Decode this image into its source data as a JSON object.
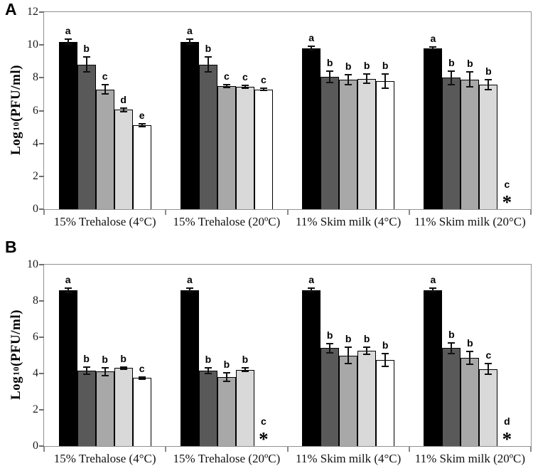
{
  "figure_title": "",
  "accent_colors": {
    "bar_border": "#000000",
    "frame": "#919191",
    "text": "#111111"
  },
  "chart_data": [
    {
      "type": "bar",
      "panel_label": "A",
      "ylabel": "Log10(PFU/ml)",
      "ylabel_parts": {
        "prefix": "Log",
        "sub": "10",
        "suffix": "(PFU/ml)"
      },
      "ylim": [
        0,
        12
      ],
      "yticks": [
        0,
        2,
        4,
        6,
        8,
        10,
        12
      ],
      "grid": false,
      "legend": "none",
      "series_colors": [
        "#000000",
        "#595959",
        "#a8a8a8",
        "#d9d9d9",
        "#ffffff"
      ],
      "categories": [
        "15% Trehalose (4°C)",
        "15% Trehalose (20ºC)",
        "11% Skim milk (4°C)",
        "11% Skim milk (20°C)"
      ],
      "groups": [
        {
          "category": "15% Trehalose (4°C)",
          "bars": [
            {
              "value": 10.2,
              "err": 0.15,
              "letter": "a"
            },
            {
              "value": 8.8,
              "err": 0.45,
              "letter": "b"
            },
            {
              "value": 7.3,
              "err": 0.3,
              "letter": "c"
            },
            {
              "value": 6.05,
              "err": 0.1,
              "letter": "d"
            },
            {
              "value": 5.1,
              "err": 0.08,
              "letter": "e"
            }
          ]
        },
        {
          "category": "15% Trehalose (20ºC)",
          "bars": [
            {
              "value": 10.2,
              "err": 0.15,
              "letter": "a"
            },
            {
              "value": 8.8,
              "err": 0.45,
              "letter": "b"
            },
            {
              "value": 7.5,
              "err": 0.08,
              "letter": "c"
            },
            {
              "value": 7.45,
              "err": 0.1,
              "letter": "c"
            },
            {
              "value": 7.3,
              "err": 0.08,
              "letter": "c"
            }
          ]
        },
        {
          "category": "11% Skim milk (4°C)",
          "bars": [
            {
              "value": 9.8,
              "err": 0.1,
              "letter": "a"
            },
            {
              "value": 8.05,
              "err": 0.35,
              "letter": "b"
            },
            {
              "value": 7.9,
              "err": 0.3,
              "letter": "b"
            },
            {
              "value": 7.95,
              "err": 0.3,
              "letter": "b"
            },
            {
              "value": 7.8,
              "err": 0.45,
              "letter": "b"
            }
          ]
        },
        {
          "category": "11% Skim milk (20°C)",
          "bars": [
            {
              "value": 9.8,
              "err": 0.07,
              "letter": "a"
            },
            {
              "value": 8.0,
              "err": 0.4,
              "letter": "b"
            },
            {
              "value": 7.9,
              "err": 0.45,
              "letter": "b"
            },
            {
              "value": 7.6,
              "err": 0.3,
              "letter": "b"
            },
            {
              "value": null,
              "err": null,
              "letter": "c",
              "asterisk": "*"
            }
          ]
        }
      ]
    },
    {
      "type": "bar",
      "panel_label": "B",
      "ylabel": "Log10(PFU/ml)",
      "ylabel_parts": {
        "prefix": "Log",
        "sub": "10",
        "suffix": "(PFU/ml)"
      },
      "ylim": [
        0,
        10
      ],
      "yticks": [
        0,
        2,
        4,
        6,
        8,
        10
      ],
      "grid": false,
      "legend": "none",
      "series_colors": [
        "#000000",
        "#595959",
        "#a8a8a8",
        "#d9d9d9",
        "#ffffff"
      ],
      "categories": [
        "15% Trehalose (4°C)",
        "15% Trehalose (20ºC)",
        "11% Skim milk (4°C)",
        "11% Skim milk (20ºC)"
      ],
      "groups": [
        {
          "category": "15% Trehalose (4°C)",
          "bars": [
            {
              "value": 8.6,
              "err": 0.12,
              "letter": "a"
            },
            {
              "value": 4.15,
              "err": 0.2,
              "letter": "b"
            },
            {
              "value": 4.1,
              "err": 0.2,
              "letter": "b"
            },
            {
              "value": 4.3,
              "err": 0.06,
              "letter": "b"
            },
            {
              "value": 3.75,
              "err": 0.05,
              "letter": "c"
            }
          ]
        },
        {
          "category": "15% Trehalose (20ºC)",
          "bars": [
            {
              "value": 8.6,
              "err": 0.1,
              "letter": "a"
            },
            {
              "value": 4.15,
              "err": 0.15,
              "letter": "b"
            },
            {
              "value": 3.8,
              "err": 0.25,
              "letter": "b"
            },
            {
              "value": 4.2,
              "err": 0.1,
              "letter": "b"
            },
            {
              "value": null,
              "err": null,
              "letter": "c",
              "asterisk": "*"
            }
          ]
        },
        {
          "category": "11% Skim milk (4°C)",
          "bars": [
            {
              "value": 8.6,
              "err": 0.1,
              "letter": "a"
            },
            {
              "value": 5.4,
              "err": 0.25,
              "letter": "b"
            },
            {
              "value": 5.0,
              "err": 0.45,
              "letter": "b"
            },
            {
              "value": 5.25,
              "err": 0.2,
              "letter": "b"
            },
            {
              "value": 4.75,
              "err": 0.35,
              "letter": "b"
            }
          ]
        },
        {
          "category": "11% Skim milk (20ºC)",
          "bars": [
            {
              "value": 8.6,
              "err": 0.1,
              "letter": "a"
            },
            {
              "value": 5.4,
              "err": 0.3,
              "letter": "b"
            },
            {
              "value": 4.85,
              "err": 0.35,
              "letter": "b"
            },
            {
              "value": 4.25,
              "err": 0.3,
              "letter": "c"
            },
            {
              "value": null,
              "err": null,
              "letter": "d",
              "asterisk": "*"
            }
          ]
        }
      ]
    }
  ]
}
